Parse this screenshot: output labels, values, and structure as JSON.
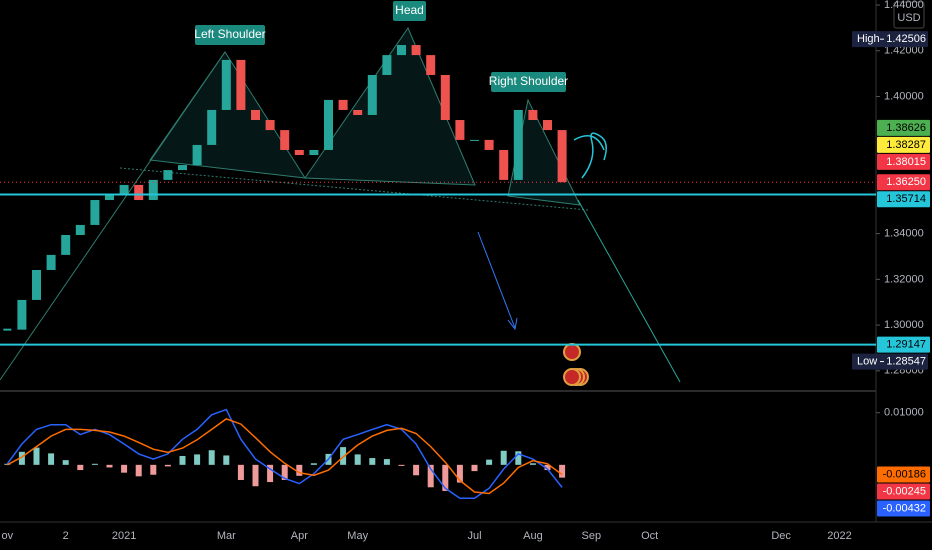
{
  "chart_data": [
    {
      "type": "candlestick",
      "currency": "USD",
      "annotations": [
        "Left Shoulder",
        "Head",
        "Right Shoulder"
      ],
      "categories": [
        "ov",
        null,
        null,
        null,
        "2",
        null,
        null,
        null,
        "2021",
        null,
        null,
        null,
        null,
        null,
        null,
        "Mar",
        null,
        null,
        null,
        null,
        "Apr",
        null,
        null,
        null,
        "May",
        null,
        null,
        null,
        null,
        null,
        null,
        null,
        "Jul",
        null,
        null,
        null,
        "Aug",
        null,
        null,
        null,
        "Sep",
        null,
        null,
        null,
        "Oct",
        null,
        null,
        null,
        null,
        null,
        null,
        null,
        null,
        "Dec",
        null,
        null,
        null,
        "2022",
        null,
        null
      ],
      "values": [
        1.298,
        1.311,
        1.3241,
        1.3307,
        1.3394,
        1.3438,
        1.3547,
        1.3569,
        1.3613,
        1.3547,
        1.3635,
        1.3678,
        1.37,
        1.3788,
        1.3941,
        1.416,
        1.3941,
        1.3897,
        1.3853,
        1.3766,
        1.3744,
        1.3766,
        1.3985,
        1.3941,
        1.3919,
        1.4094,
        1.4181,
        1.4225,
        1.4181,
        1.4094,
        1.3897,
        1.381,
        1.381,
        1.3766,
        1.3635,
        1.3941,
        1.3897,
        1.3853,
        1.3625,
        null,
        null,
        null,
        null,
        null,
        null,
        null,
        null,
        null,
        null,
        null,
        null,
        null,
        null,
        null,
        null,
        null,
        null,
        null,
        null,
        null
      ],
      "up_color": "#26a69a",
      "down_color": "#ef5350",
      "ylim": [
        1.2716,
        1.4422
      ],
      "yticks": [
        {
          "value": 1.28,
          "label": "1.28000"
        },
        {
          "value": 1.3,
          "label": "1.30000"
        },
        {
          "value": 1.32,
          "label": "1.32000"
        },
        {
          "value": 1.34,
          "label": "1.34000"
        },
        {
          "value": 1.4,
          "label": "1.40000"
        },
        {
          "value": 1.42,
          "label": "1.42000"
        },
        {
          "value": 1.44,
          "label": "1.44000"
        }
      ],
      "price_tags": [
        {
          "name": "High",
          "value": 1.42506,
          "color": "#1c2340",
          "text_color": "#ffffff"
        },
        {
          "value": 1.38626,
          "color": "#4caf50",
          "text_color": "#000000"
        },
        {
          "value": 1.38287,
          "color": "#ffeb3b",
          "text_color": "#000000"
        },
        {
          "value": 1.38015,
          "color": "#f23645",
          "text_color": "#ffffff"
        },
        {
          "value": 1.3625,
          "label": "1.36250",
          "color": "#f23645",
          "text_color": "#ffffff",
          "dotted": true
        },
        {
          "value": 1.35714,
          "color": "#26c6da",
          "text_color": "#000000",
          "line": true
        },
        {
          "value": 1.29147,
          "color": "#26c6da",
          "text_color": "#000000",
          "line": true
        },
        {
          "name": "Low",
          "value": 1.28547,
          "color": "#1c2340",
          "text_color": "#ffffff"
        }
      ]
    },
    {
      "type": "macd",
      "series": [
        {
          "type": "bar",
          "color": "#80cbc4",
          "negative_color": "#ef9a9a",
          "values": [
            0.0002,
            0.0025,
            0.0033,
            0.0022,
            0.0009,
            -0.001,
            0.0002,
            -0.0005,
            -0.0015,
            -0.0022,
            -0.0019,
            -0.0003,
            0.0017,
            0.002,
            0.0028,
            0.0018,
            -0.0029,
            -0.0041,
            -0.0033,
            -0.0029,
            -0.0021,
            0.0003,
            0.0021,
            0.0034,
            0.002,
            0.0013,
            0.0011,
            -0.0002,
            -0.002,
            -0.0043,
            -0.005,
            -0.0034,
            -0.0012,
            0.001,
            0.0027,
            0.0026,
            0.0003,
            -0.001,
            -0.00245,
            null,
            null,
            null,
            null,
            null,
            null,
            null,
            null,
            null,
            null,
            null,
            null,
            null,
            null,
            null,
            null,
            null,
            null,
            null,
            null,
            null
          ]
        },
        {
          "type": "line",
          "color": "#2962ff",
          "values": [
            0.0002,
            0.004,
            0.0068,
            0.0077,
            0.0077,
            0.0058,
            0.0068,
            0.0058,
            0.004,
            0.0021,
            0.0011,
            0.0021,
            0.0049,
            0.0068,
            0.0096,
            0.0106,
            0.0049,
            0.0011,
            -0.0008,
            -0.0026,
            -0.0036,
            -0.0017,
            0.0011,
            0.0049,
            0.0058,
            0.0068,
            0.0077,
            0.0068,
            0.004,
            -0.0008,
            -0.0045,
            -0.0064,
            -0.0064,
            -0.0045,
            -0.0008,
            0.0021,
            0.0011,
            -0.0008,
            -0.00432,
            null,
            null,
            null,
            null,
            null,
            null,
            null,
            null,
            null,
            null,
            null,
            null,
            null,
            null,
            null,
            null,
            null,
            null,
            null,
            null,
            null
          ]
        },
        {
          "type": "line",
          "color": "#ff6d00",
          "values": [
            0,
            0.0015,
            0.0035,
            0.0055,
            0.0068,
            0.0068,
            0.0066,
            0.0063,
            0.0055,
            0.0043,
            0.003,
            0.0024,
            0.0032,
            0.0048,
            0.0068,
            0.0088,
            0.0078,
            0.0052,
            0.0025,
            0.0003,
            -0.0015,
            -0.002,
            -0.001,
            0.0015,
            0.0038,
            0.0055,
            0.0066,
            0.007,
            0.006,
            0.0035,
            0.0005,
            -0.003,
            -0.0052,
            -0.0055,
            -0.0035,
            -0.0005,
            0.0008,
            0.0002,
            -0.00186,
            null,
            null,
            null,
            null,
            null,
            null,
            null,
            null,
            null,
            null,
            null,
            null,
            null,
            null,
            null,
            null,
            null,
            null,
            null,
            null,
            null
          ]
        }
      ],
      "ylim": [
        -0.01057,
        0.01396
      ],
      "yticks": [
        {
          "value": 0.01,
          "label": "0.01000"
        }
      ],
      "price_tags": [
        {
          "value": -0.00186,
          "color": "#ff6d00",
          "text_color": "#000000"
        },
        {
          "value": -0.00245,
          "color": "#f23645",
          "text_color": "#ffffff"
        },
        {
          "value": -0.00432,
          "color": "#2962ff",
          "text_color": "#ffffff"
        }
      ]
    }
  ]
}
